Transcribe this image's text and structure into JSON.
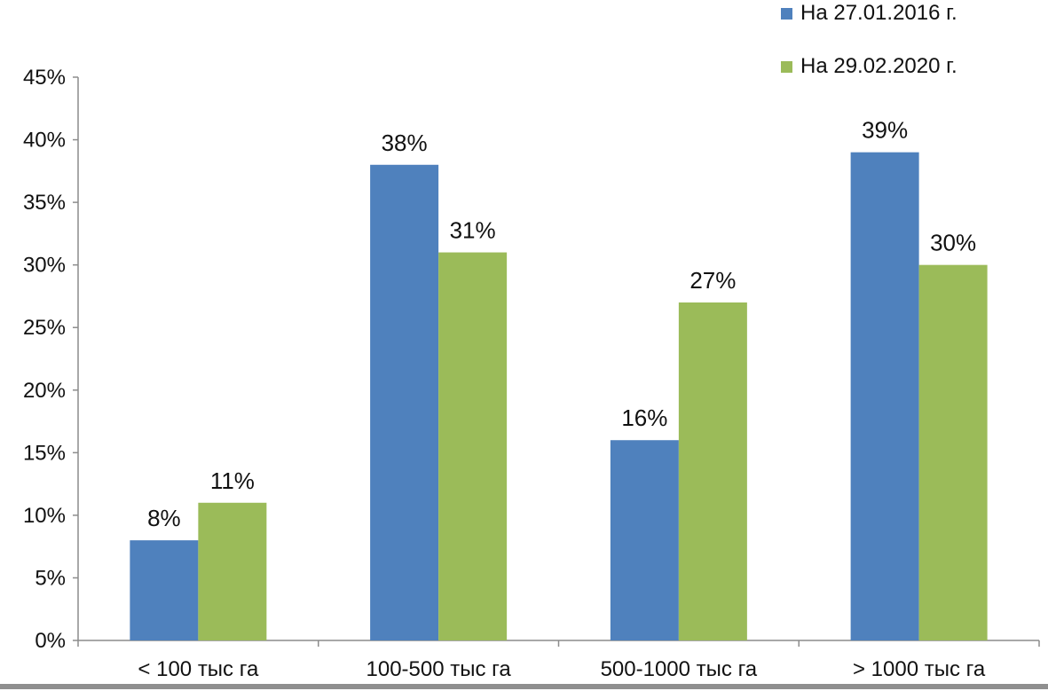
{
  "chart_data": {
    "type": "bar",
    "categories": [
      "< 100 тыс га",
      "100-500 тыс га",
      "500-1000 тыс га",
      "> 1000 тыс га"
    ],
    "series": [
      {
        "name": "На 27.01.2016 г.",
        "values": [
          8,
          38,
          16,
          39
        ],
        "data_labels": [
          "8%",
          "38%",
          "16%",
          "39%"
        ],
        "color": "#4f81bd"
      },
      {
        "name": "На 29.02.2020 г.",
        "values": [
          11,
          31,
          27,
          30
        ],
        "data_labels": [
          "11%",
          "31%",
          "27%",
          "30%"
        ],
        "color": "#9bbb59"
      }
    ],
    "ylim": [
      0,
      45
    ],
    "yticks": [
      0,
      5,
      10,
      15,
      20,
      25,
      30,
      35,
      40,
      45
    ],
    "ytick_labels": [
      "0%",
      "5%",
      "10%",
      "15%",
      "20%",
      "25%",
      "30%",
      "35%",
      "40%",
      "45%"
    ],
    "grid": false,
    "legend_position": "top-right"
  }
}
